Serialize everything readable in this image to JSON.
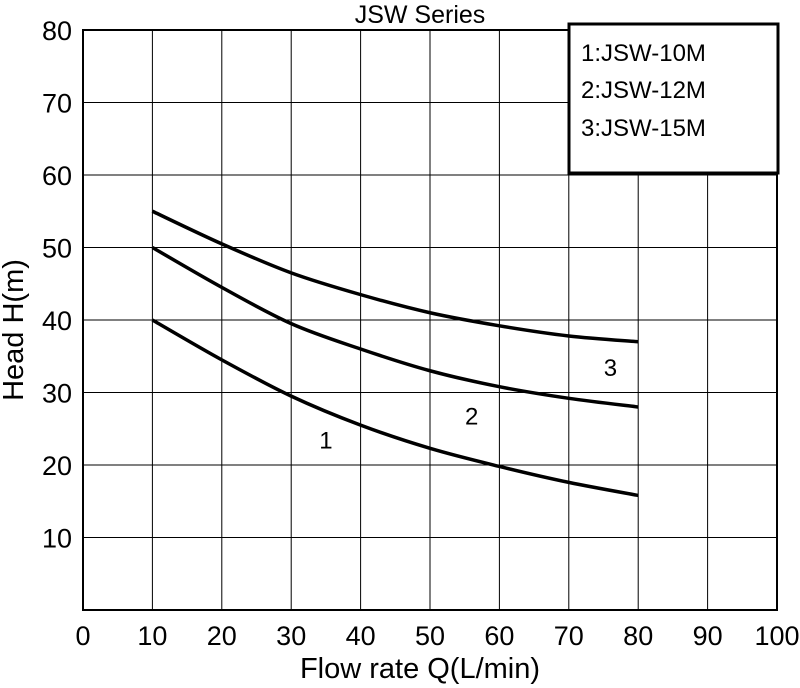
{
  "chart_data": {
    "type": "line",
    "title": "JSW Series",
    "xlabel": "Flow rate Q(L/min)",
    "ylabel": "Head H(m)",
    "xlim": [
      0,
      100
    ],
    "ylim": [
      0,
      80
    ],
    "xticks": [
      "0",
      "10",
      "20",
      "30",
      "40",
      "50",
      "60",
      "70",
      "80",
      "90",
      "100"
    ],
    "yticks": [
      "10",
      "20",
      "30",
      "40",
      "50",
      "60",
      "70",
      "80"
    ],
    "grid": true,
    "legend_position": "top-right",
    "legend": [
      "1:JSW-10M",
      "2:JSW-12M",
      "3:JSW-15M"
    ],
    "series": [
      {
        "name": "1",
        "x": [
          10,
          20,
          30,
          40,
          50,
          60,
          70,
          80
        ],
        "y": [
          40,
          34.5,
          29.5,
          25.5,
          22.3,
          19.8,
          17.6,
          15.8
        ]
      },
      {
        "name": "2",
        "x": [
          10,
          20,
          30,
          40,
          50,
          60,
          70,
          80
        ],
        "y": [
          50,
          44.5,
          39.5,
          36,
          33,
          30.8,
          29.2,
          28
        ]
      },
      {
        "name": "3",
        "x": [
          10,
          20,
          30,
          40,
          50,
          60,
          70,
          80
        ],
        "y": [
          55,
          50.5,
          46.5,
          43.5,
          41,
          39.2,
          37.8,
          37
        ]
      }
    ],
    "annotations": [
      {
        "text": "1",
        "x": 35,
        "y": 23.5
      },
      {
        "text": "2",
        "x": 56,
        "y": 26.8
      },
      {
        "text": "3",
        "x": 76,
        "y": 33.5
      }
    ]
  }
}
